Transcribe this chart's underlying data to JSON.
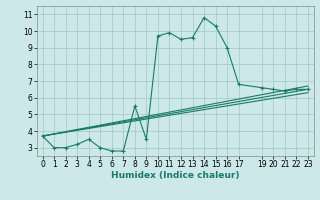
{
  "xlabel": "Humidex (Indice chaleur)",
  "bg_color": "#cce8e8",
  "grid_color": "#aacccc",
  "line_color": "#1a7a6a",
  "main_x": [
    0,
    1,
    2,
    3,
    4,
    5,
    6,
    7,
    8,
    9,
    10,
    11,
    12,
    13,
    14,
    15,
    16,
    17,
    19,
    20,
    21,
    22,
    23
  ],
  "main_y": [
    3.7,
    3.0,
    3.0,
    3.2,
    3.5,
    3.0,
    2.8,
    2.8,
    5.5,
    3.5,
    9.7,
    9.9,
    9.5,
    9.6,
    10.8,
    10.3,
    9.0,
    6.8,
    6.6,
    6.5,
    6.4,
    6.5,
    6.5
  ],
  "line2_x": [
    0,
    23
  ],
  "line2_y": [
    3.7,
    6.7
  ],
  "line3_x": [
    0,
    23
  ],
  "line3_y": [
    3.7,
    6.5
  ],
  "line4_x": [
    0,
    23
  ],
  "line4_y": [
    3.7,
    6.3
  ],
  "ylim": [
    2.5,
    11.5
  ],
  "xlim": [
    -0.5,
    23.5
  ],
  "yticks": [
    3,
    4,
    5,
    6,
    7,
    8,
    9,
    10,
    11
  ],
  "xticks": [
    0,
    1,
    2,
    3,
    4,
    5,
    6,
    7,
    8,
    9,
    10,
    11,
    12,
    13,
    14,
    15,
    16,
    17,
    19,
    20,
    21,
    22,
    23
  ],
  "tick_fontsize": 5.5,
  "xlabel_fontsize": 6.5
}
